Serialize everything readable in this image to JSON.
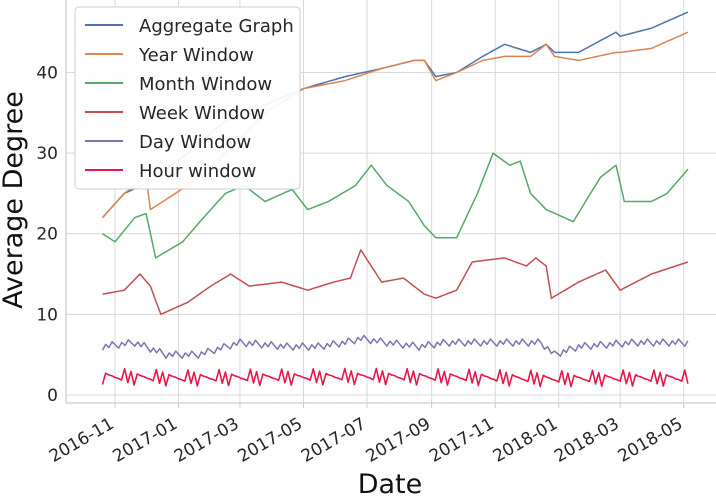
{
  "chart_data": {
    "type": "line",
    "title": "",
    "xlabel": "Date",
    "ylabel": "Average Degree",
    "xlim": [
      "2016-09-15",
      "2018-06-01"
    ],
    "ylim": [
      -1,
      49
    ],
    "x_ticks": [
      "2016-11",
      "2017-01",
      "2017-03",
      "2017-05",
      "2017-07",
      "2017-09",
      "2017-11",
      "2018-01",
      "2018-03",
      "2018-05"
    ],
    "y_ticks": [
      0,
      10,
      20,
      30,
      40
    ],
    "grid": true,
    "legend_position": "top-left",
    "series": [
      {
        "name": "Aggregate Graph",
        "color": "#4c72b0",
        "x": [
          "2016-10-20",
          "2016-11-10",
          "2016-12-05",
          "2017-01-10",
          "2017-02-15",
          "2017-03-25",
          "2017-05-01",
          "2017-06-10",
          "2017-07-15",
          "2017-08-15",
          "2017-08-25",
          "2017-09-05",
          "2017-09-25",
          "2017-10-20",
          "2017-11-10",
          "2017-12-05",
          "2017-12-20",
          "2017-12-28",
          "2018-01-20",
          "2018-02-25",
          "2018-03-01",
          "2018-03-31",
          "2018-05-05"
        ],
        "y": [
          22.0,
          25.0,
          26.5,
          30.0,
          34.0,
          36.0,
          38.0,
          39.5,
          40.5,
          41.5,
          41.5,
          39.5,
          40.0,
          42.0,
          43.5,
          42.5,
          43.5,
          42.5,
          42.5,
          45.0,
          44.5,
          45.5,
          47.5
        ]
      },
      {
        "name": "Year Window",
        "color": "#dd8452",
        "x": [
          "2016-10-20",
          "2016-11-10",
          "2016-12-01",
          "2016-12-05",
          "2017-01-10",
          "2017-02-15",
          "2017-03-25",
          "2017-05-01",
          "2017-06-10",
          "2017-07-15",
          "2017-08-15",
          "2017-08-25",
          "2017-09-05",
          "2017-09-25",
          "2017-10-20",
          "2017-11-10",
          "2017-12-05",
          "2017-12-20",
          "2017-12-28",
          "2018-01-20",
          "2018-02-25",
          "2018-03-01",
          "2018-03-31",
          "2018-05-05"
        ],
        "y": [
          22.0,
          25.0,
          27.0,
          23.0,
          26.0,
          30.0,
          35.0,
          38.0,
          39.0,
          40.5,
          41.5,
          41.5,
          39.0,
          40.0,
          41.5,
          42.0,
          42.0,
          43.5,
          42.0,
          41.5,
          42.5,
          42.5,
          43.0,
          45.0
        ]
      },
      {
        "name": "Month Window",
        "color": "#55a868",
        "x": [
          "2016-10-20",
          "2016-11-01",
          "2016-11-20",
          "2016-12-01",
          "2016-12-10",
          "2017-01-05",
          "2017-01-25",
          "2017-02-15",
          "2017-03-05",
          "2017-03-25",
          "2017-04-20",
          "2017-05-05",
          "2017-05-25",
          "2017-06-20",
          "2017-07-05",
          "2017-07-20",
          "2017-08-10",
          "2017-08-25",
          "2017-09-05",
          "2017-09-25",
          "2017-10-15",
          "2017-10-30",
          "2017-11-15",
          "2017-11-25",
          "2017-12-05",
          "2017-12-20",
          "2018-01-15",
          "2018-02-10",
          "2018-02-25",
          "2018-03-05",
          "2018-03-31",
          "2018-04-15",
          "2018-05-05"
        ],
        "y": [
          20.0,
          19.0,
          22.0,
          22.5,
          17.0,
          19.0,
          22.0,
          25.0,
          26.0,
          24.0,
          25.5,
          23.0,
          24.0,
          26.0,
          28.5,
          26.0,
          24.0,
          21.0,
          19.5,
          19.5,
          25.0,
          30.0,
          28.5,
          29.0,
          25.0,
          23.0,
          21.5,
          27.0,
          28.5,
          24.0,
          24.0,
          25.0,
          28.0
        ]
      },
      {
        "name": "Week Window",
        "color": "#c44e52",
        "x": [
          "2016-10-20",
          "2016-11-10",
          "2016-11-25",
          "2016-12-05",
          "2016-12-15",
          "2017-01-10",
          "2017-02-01",
          "2017-02-20",
          "2017-03-10",
          "2017-04-10",
          "2017-05-05",
          "2017-05-30",
          "2017-06-15",
          "2017-06-25",
          "2017-07-15",
          "2017-08-05",
          "2017-08-25",
          "2017-09-05",
          "2017-09-25",
          "2017-10-10",
          "2017-11-10",
          "2017-12-01",
          "2017-12-10",
          "2017-12-20",
          "2017-12-25",
          "2018-01-20",
          "2018-02-15",
          "2018-03-01",
          "2018-03-31",
          "2018-05-05"
        ],
        "y": [
          12.5,
          13.0,
          15.0,
          13.5,
          10.0,
          11.5,
          13.5,
          15.0,
          13.5,
          14.0,
          13.0,
          14.0,
          14.5,
          18.0,
          14.0,
          14.5,
          12.5,
          12.0,
          13.0,
          16.5,
          17.0,
          16.0,
          17.0,
          16.0,
          12.0,
          14.0,
          15.5,
          13.0,
          15.0,
          16.5
        ]
      },
      {
        "name": "Day Window",
        "color": "#8172b3",
        "x": [
          "2016-10-20",
          "2016-11-20",
          "2016-12-20",
          "2017-01-20",
          "2017-03-01",
          "2017-04-15",
          "2017-05-15",
          "2017-06-10",
          "2017-06-25",
          "2017-07-20",
          "2017-08-20",
          "2017-09-15",
          "2017-10-15",
          "2017-11-15",
          "2017-12-15",
          "2017-12-28",
          "2018-01-20",
          "2018-03-15",
          "2018-05-05"
        ],
        "y": [
          6.0,
          6.5,
          5.0,
          5.0,
          6.5,
          6.0,
          6.0,
          6.5,
          7.0,
          6.5,
          6.0,
          6.5,
          6.5,
          6.5,
          6.5,
          5.0,
          6.0,
          6.5,
          6.5
        ]
      },
      {
        "name": "Hour window",
        "color": "#e8174a",
        "x": [
          "2016-10-20",
          "2017-01-01",
          "2017-04-01",
          "2017-07-01",
          "2017-10-01",
          "2018-01-01",
          "2018-03-01",
          "2018-05-05"
        ],
        "y": [
          2.3,
          2.1,
          2.2,
          2.3,
          2.2,
          2.0,
          2.1,
          2.1
        ]
      }
    ]
  }
}
